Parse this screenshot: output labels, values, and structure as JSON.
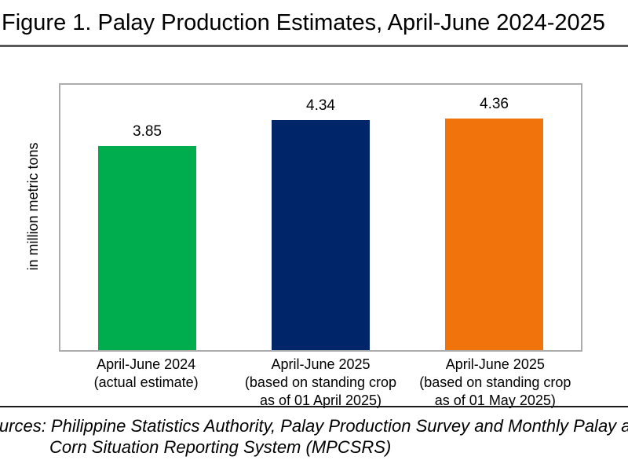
{
  "colors": {
    "bar_green": "#00AD4E",
    "bar_navy": "#002569",
    "bar_orange": "#F0730B",
    "title_rule": "#595959",
    "source_rule": "#1A1A1A",
    "plot_border": "#ACACAC",
    "text": "#000000"
  },
  "figure": {
    "title": "Figure 1. Palay Production Estimates, April-June 2024-2025",
    "y_axis_label": "in million metric tons",
    "source_line1": "Sources: Philippine Statistics Authority, Palay Production Survey and Monthly Palay and",
    "source_line2": "Corn Situation Reporting System (MPCSRS)"
  },
  "chart_data": {
    "type": "bar",
    "title": "Figure 1. Palay Production Estimates, April-June 2024-2025",
    "categories": [
      [
        "April-June 2024",
        "(actual estimate)"
      ],
      [
        "April-June 2025",
        "(based on standing crop",
        "as of 01 April 2025)"
      ],
      [
        "April-June 2025",
        "(based on standing crop",
        "as of 01 May 2025)"
      ]
    ],
    "values": [
      3.85,
      4.34,
      4.36
    ],
    "value_labels": [
      "3.85",
      "4.34",
      "4.36"
    ],
    "bar_colors": [
      "#00AD4E",
      "#002569",
      "#F0730B"
    ],
    "xlabel": "",
    "ylabel": "in million metric tons",
    "ylim": [
      0,
      5
    ],
    "grid": false,
    "legend": false
  }
}
